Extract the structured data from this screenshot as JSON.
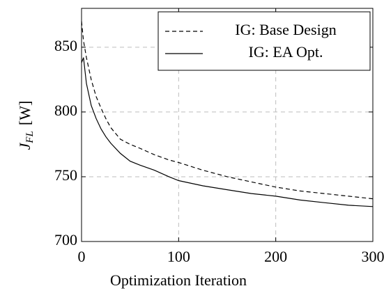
{
  "chart_data": {
    "type": "line",
    "xlabel": "Optimization Iteration",
    "ylabel": {
      "symbol": "J",
      "subscript": "FL",
      "unit": "[W]"
    },
    "x": [
      0,
      2,
      5,
      10,
      15,
      20,
      25,
      30,
      40,
      50,
      60,
      75,
      90,
      100,
      125,
      150,
      175,
      200,
      225,
      250,
      275,
      300
    ],
    "series": [
      {
        "name": "IG: Base Design",
        "color": "#000000",
        "dash": true,
        "values": [
          870,
          855,
          842,
          825,
          812,
          803,
          795,
          788,
          779,
          775,
          772,
          767,
          763,
          761,
          755,
          750,
          746,
          742,
          739,
          737,
          735,
          733
        ]
      },
      {
        "name": "IG: EA Opt.",
        "color": "#000000",
        "dash": false,
        "values": [
          838,
          842,
          822,
          805,
          795,
          787,
          781,
          776,
          768,
          762,
          759,
          755,
          750,
          747,
          743,
          740,
          737,
          735,
          732,
          730,
          728,
          727
        ]
      }
    ],
    "xlim": [
      0,
      300
    ],
    "xticks": [
      0,
      100,
      200,
      300
    ],
    "ylim": [
      700,
      880
    ],
    "yticks": [
      700,
      750,
      800,
      850
    ],
    "grid": true,
    "legend": "top-right"
  }
}
